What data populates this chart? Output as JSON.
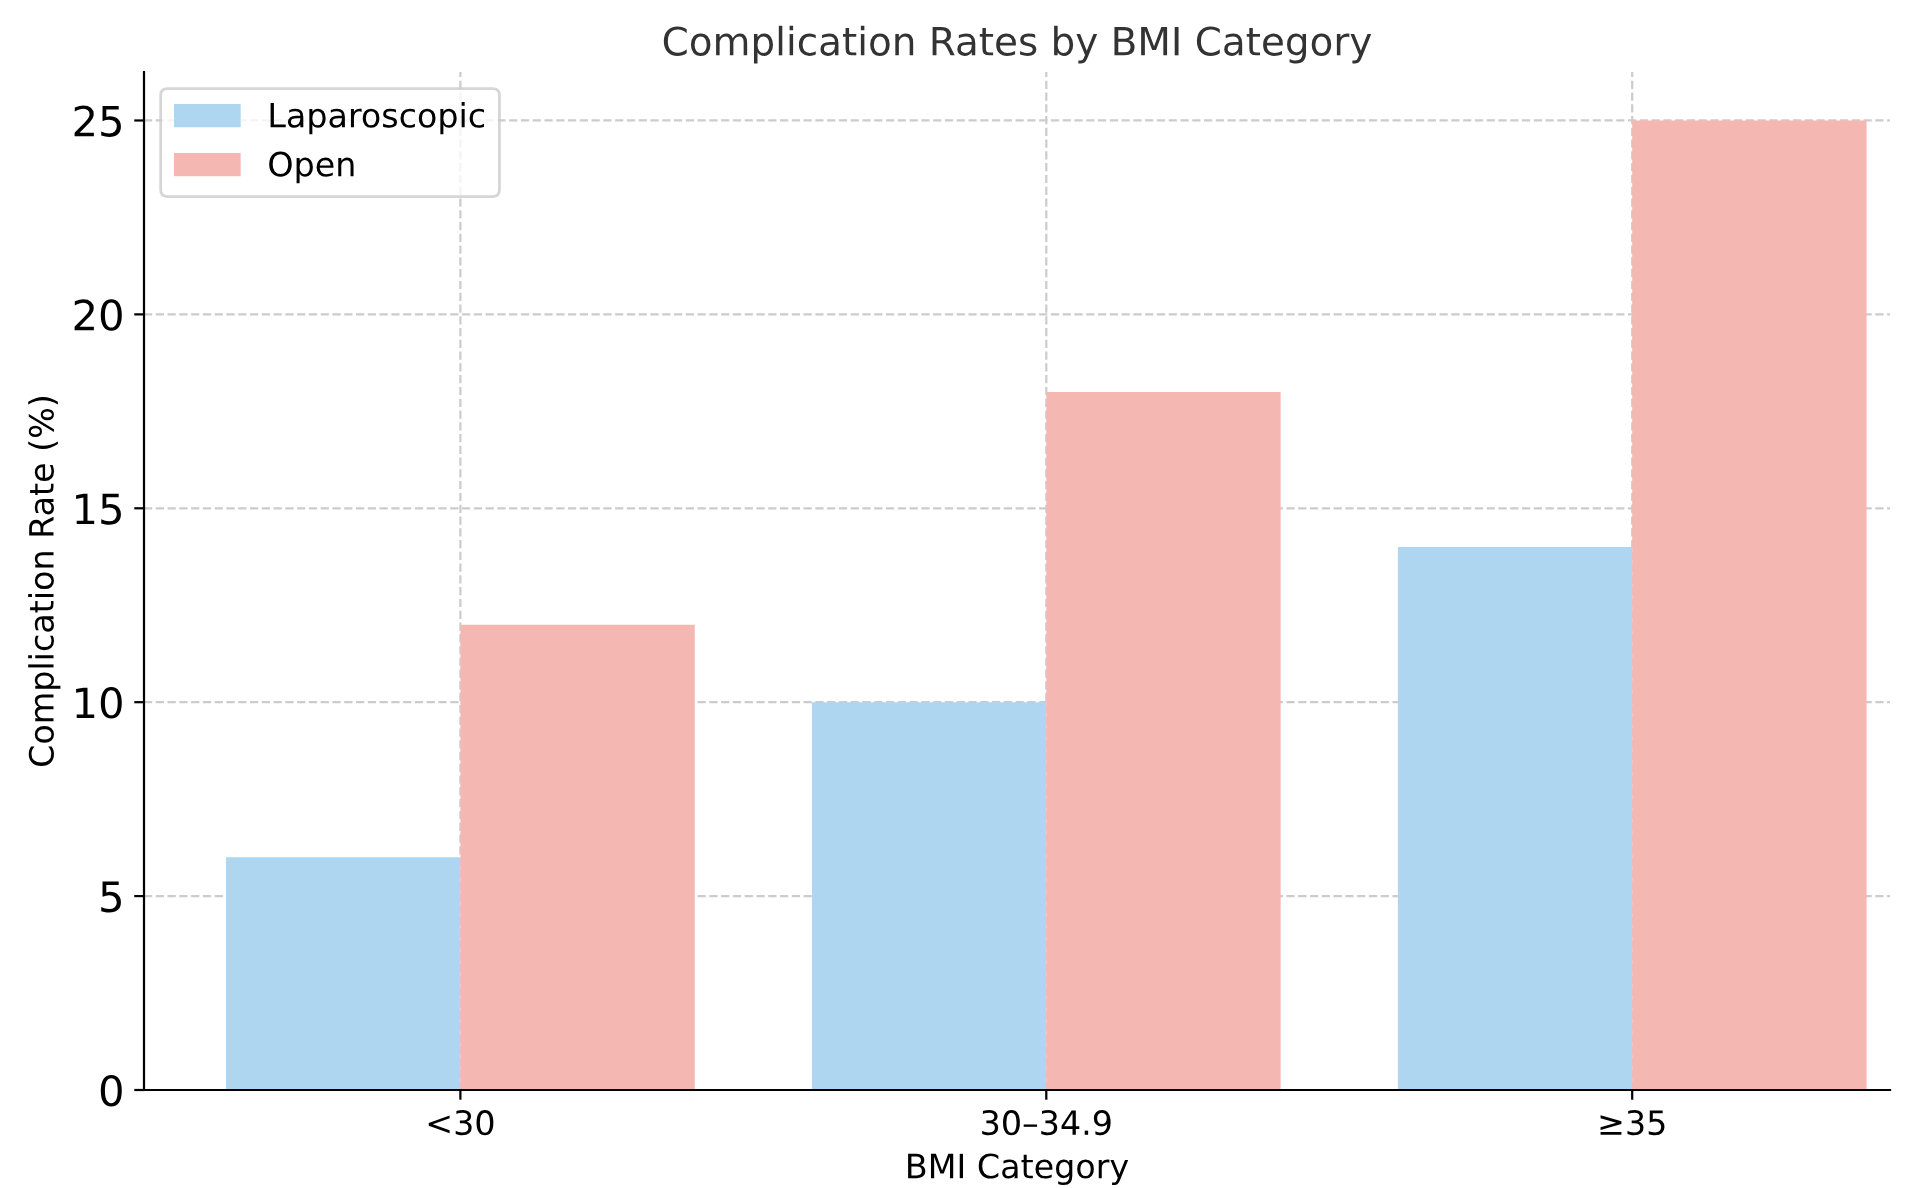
{
  "chart_data": {
    "type": "bar",
    "title": "Complication Rates by BMI Category",
    "xlabel": "BMI Category",
    "ylabel": "Complication Rate (%)",
    "categories": [
      "<30",
      "30–34.9",
      "≥35"
    ],
    "series": [
      {
        "name": "Laparoscopic",
        "color": "#aed6f1",
        "values": [
          6,
          10,
          14
        ]
      },
      {
        "name": "Open",
        "color": "#f5b7b1",
        "values": [
          12,
          18,
          25
        ]
      }
    ],
    "ylim": [
      0,
      26.25
    ],
    "yticks": [
      0,
      5,
      10,
      15,
      20,
      25
    ],
    "grid": true,
    "legend": "top left"
  }
}
